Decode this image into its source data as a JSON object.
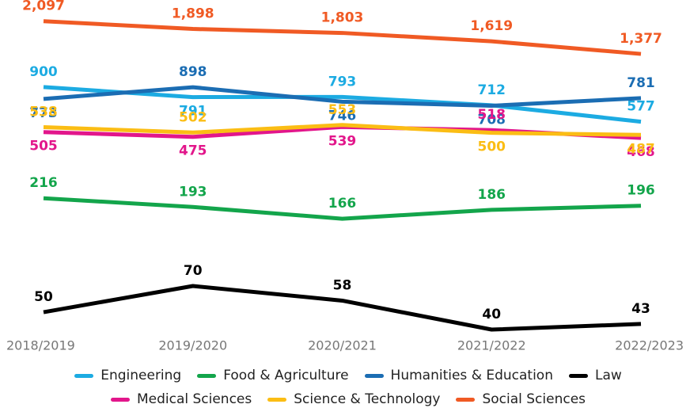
{
  "chart_data": {
    "type": "line",
    "categories": [
      "2018/2019",
      "2019/2020",
      "2020/2021",
      "2021/2022",
      "2022/2023"
    ],
    "series": [
      {
        "name": "Engineering",
        "color": "#1cabe2",
        "values": [
          900,
          791,
          793,
          712,
          577
        ]
      },
      {
        "name": "Food & Agriculture",
        "color": "#13a54b",
        "values": [
          216,
          193,
          166,
          186,
          196
        ]
      },
      {
        "name": "Humanities & Education",
        "color": "#1b6db3",
        "values": [
          773,
          898,
          746,
          708,
          781
        ]
      },
      {
        "name": "Law",
        "color": "#000000",
        "values": [
          50,
          70,
          58,
          40,
          43
        ]
      },
      {
        "name": "Medical Sciences",
        "color": "#e2168b",
        "values": [
          505,
          475,
          539,
          518,
          468
        ]
      },
      {
        "name": "Science & Technology",
        "color": "#fbbd14",
        "values": [
          538,
          502,
          553,
          500,
          487
        ]
      },
      {
        "name": "Social Sciences",
        "color": "#f05a24",
        "values": [
          2097,
          1898,
          1803,
          1619,
          1377
        ]
      }
    ],
    "value_labels": [
      [
        "900",
        "791",
        "793",
        "712",
        "577"
      ],
      [
        "216",
        "193",
        "166",
        "186",
        "196"
      ],
      [
        "773",
        "898",
        "746",
        "708",
        "781"
      ],
      [
        "50",
        "70",
        "58",
        "40",
        "43"
      ],
      [
        "505",
        "475",
        "539",
        "518",
        "468"
      ],
      [
        "538",
        "502",
        "553",
        "500",
        "487"
      ],
      [
        "2,097",
        "1,898",
        "1,803",
        "1,619",
        "1,377"
      ]
    ],
    "log_scale": true,
    "ylim": [
      40,
      2200
    ],
    "legend": "bottom"
  }
}
